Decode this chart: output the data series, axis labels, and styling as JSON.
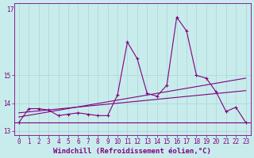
{
  "title": "",
  "xlabel": "Windchill (Refroidissement éolien,°C)",
  "ylabel": "",
  "background_color": "#c8ecec",
  "grid_color": "#b0d8d8",
  "line_color": "#800080",
  "x_values": [
    0,
    1,
    2,
    3,
    4,
    5,
    6,
    7,
    8,
    9,
    10,
    11,
    12,
    13,
    14,
    15,
    16,
    17,
    18,
    19,
    20,
    21,
    22,
    23
  ],
  "y_main": [
    13.3,
    13.8,
    13.8,
    13.75,
    13.55,
    13.6,
    13.65,
    13.6,
    13.55,
    13.55,
    14.3,
    16.2,
    15.6,
    14.35,
    14.25,
    14.65,
    17.1,
    16.6,
    15.0,
    14.9,
    14.4,
    13.7,
    13.85,
    13.3
  ],
  "y_min_y": 13.3,
  "y_trend1_x": [
    0,
    23
  ],
  "y_trend1_y": [
    13.5,
    14.9
  ],
  "y_trend2_x": [
    0,
    23
  ],
  "y_trend2_y": [
    13.65,
    14.45
  ],
  "ylim": [
    12.85,
    17.6
  ],
  "xlim": [
    -0.5,
    23.5
  ],
  "yticks": [
    13,
    14,
    15
  ],
  "ytick_top": 17,
  "xticks": [
    0,
    1,
    2,
    3,
    4,
    5,
    6,
    7,
    8,
    9,
    10,
    11,
    12,
    13,
    14,
    15,
    16,
    17,
    18,
    19,
    20,
    21,
    22,
    23
  ],
  "tick_fontsize": 5.5,
  "xlabel_fontsize": 6.5
}
